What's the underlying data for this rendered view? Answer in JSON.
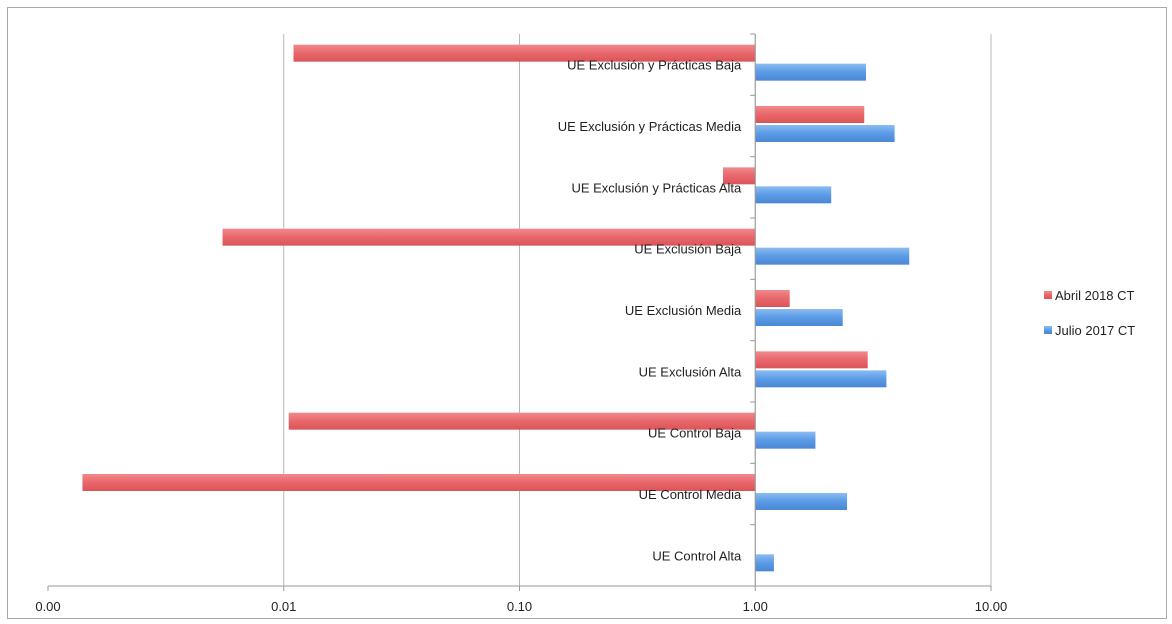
{
  "chart_data": {
    "type": "bar",
    "orientation": "horizontal",
    "x_scale": "log",
    "xlim": [
      0.001,
      10
    ],
    "x_tick_labels": [
      "0.00",
      "0.01",
      "0.10",
      "1.00",
      "10.00"
    ],
    "grid": true,
    "legend_position": "right",
    "categories": [
      "UE Exclusión y Prácticas Baja",
      "UE Exclusión y Prácticas Media",
      "UE Exclusión y Prácticas Alta",
      "UE Exclusión Baja",
      "UE Exclusión Media",
      "UE Exclusión Alta",
      "UE Control  Baja",
      "UE Control Media",
      "UE Control Alta"
    ],
    "series": [
      {
        "name": "Abril 2018 CT",
        "color": "#e9676b",
        "values": [
          0.011,
          2.9,
          0.73,
          0.0055,
          1.4,
          3.0,
          0.0105,
          0.0014,
          null
        ]
      },
      {
        "name": "Julio 2017 CT",
        "color": "#5b9be6",
        "values": [
          2.95,
          3.9,
          2.1,
          4.5,
          2.35,
          3.6,
          1.8,
          2.45,
          1.2
        ]
      }
    ]
  }
}
